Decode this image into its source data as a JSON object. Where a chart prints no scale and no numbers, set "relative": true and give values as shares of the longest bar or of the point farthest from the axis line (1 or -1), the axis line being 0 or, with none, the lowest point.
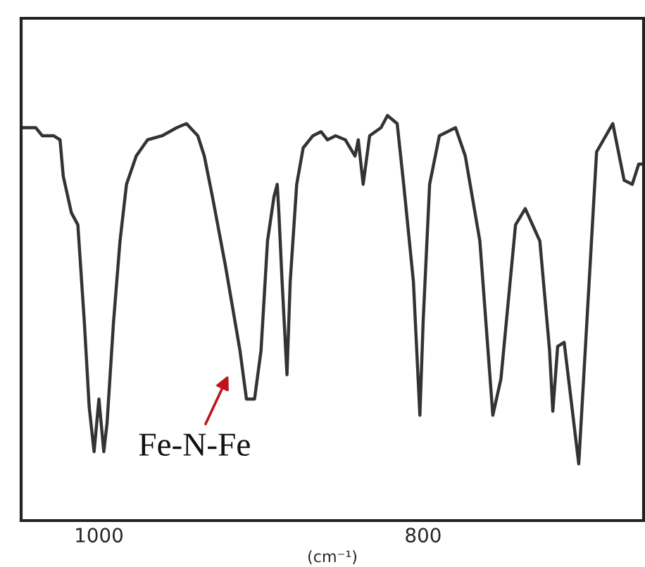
{
  "chart_data": {
    "type": "line",
    "relative": true,
    "xlabel": "(cm⁻¹)",
    "xlim": [
      1048,
      664
    ],
    "xticks": [
      1000,
      800
    ],
    "tick_labels": "x",
    "grid": false,
    "legend": false,
    "marker": "none",
    "line_style": "solid",
    "annotations": [
      {
        "text": "Fe-N-Fe",
        "x": 913,
        "y": 0.42
      }
    ],
    "series": [
      {
        "color": "#333333",
        "x": [
          1048,
          1039,
          1035,
          1028,
          1024,
          1022,
          1017,
          1013,
          1009,
          1006,
          1003,
          1000,
          997,
          995,
          991,
          987,
          983,
          977,
          970,
          961,
          952,
          946,
          939,
          935,
          930,
          922,
          913,
          909,
          904,
          900,
          896,
          892,
          890,
          889,
          887,
          884,
          882,
          878,
          874,
          868,
          863,
          859,
          854,
          848,
          842,
          840,
          837,
          833,
          826,
          822,
          816,
          812,
          806,
          802,
          800,
          796,
          790,
          780,
          774,
          765,
          757,
          752,
          743,
          737,
          728,
          722,
          720,
          717,
          713,
          704,
          700,
          693,
          683,
          676,
          671,
          667,
          664
        ],
        "values": [
          0.97,
          0.97,
          0.95,
          0.95,
          0.94,
          0.85,
          0.76,
          0.73,
          0.49,
          0.28,
          0.17,
          0.3,
          0.17,
          0.24,
          0.49,
          0.69,
          0.83,
          0.9,
          0.94,
          0.95,
          0.97,
          0.98,
          0.95,
          0.9,
          0.8,
          0.63,
          0.42,
          0.3,
          0.3,
          0.42,
          0.69,
          0.8,
          0.83,
          0.76,
          0.59,
          0.36,
          0.59,
          0.83,
          0.92,
          0.95,
          0.96,
          0.94,
          0.95,
          0.94,
          0.9,
          0.94,
          0.83,
          0.95,
          0.97,
          1.0,
          0.98,
          0.83,
          0.59,
          0.26,
          0.49,
          0.83,
          0.95,
          0.97,
          0.9,
          0.69,
          0.26,
          0.35,
          0.73,
          0.77,
          0.69,
          0.42,
          0.27,
          0.43,
          0.44,
          0.14,
          0.42,
          0.91,
          0.98,
          0.84,
          0.83,
          0.88,
          0.88
        ]
      }
    ]
  }
}
